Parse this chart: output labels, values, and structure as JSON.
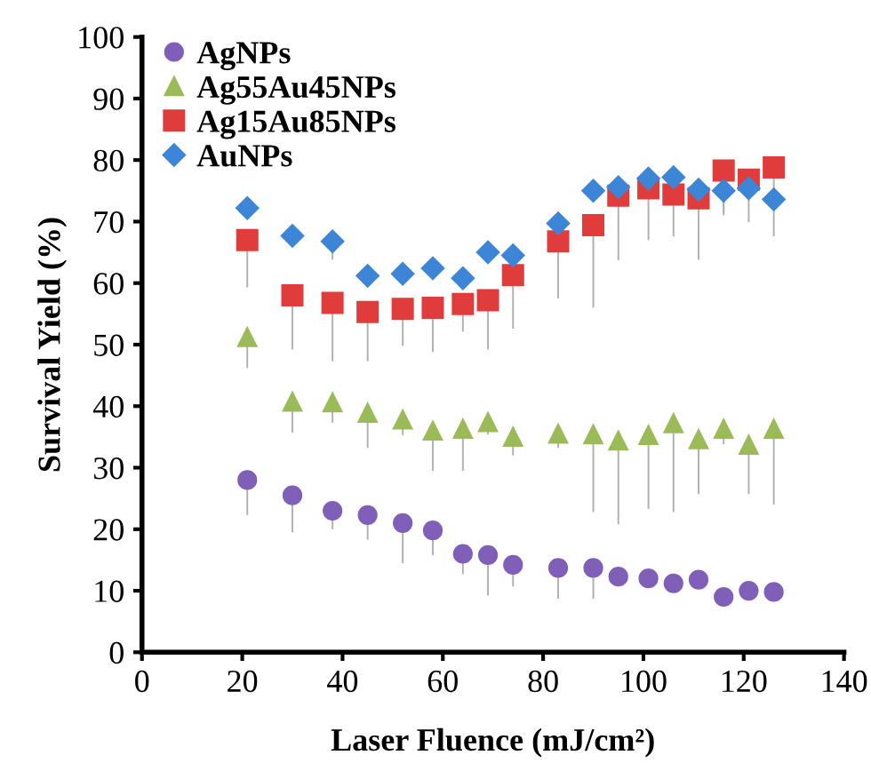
{
  "chart_data": {
    "type": "scatter",
    "xlabel": "Laser Fluence (mJ/cm²)",
    "ylabel": "Survival Yield (%)",
    "x": [
      21,
      30,
      38,
      45,
      52,
      58,
      64,
      69,
      74,
      83,
      90,
      95,
      101,
      106,
      111,
      116,
      121,
      126
    ],
    "xlim": [
      0,
      140
    ],
    "xticks": [
      0,
      20,
      40,
      60,
      80,
      100,
      120,
      140
    ],
    "ylim": [
      0,
      100
    ],
    "yticks": [
      0,
      10,
      20,
      30,
      40,
      50,
      60,
      70,
      80,
      90,
      100
    ],
    "grid": false,
    "legend": "top left",
    "series": [
      {
        "name": "AgNPs",
        "color": "#7f5fb8",
        "marker": "circle",
        "values": [
          28,
          25.5,
          23,
          22.3,
          21,
          19.8,
          16,
          15.8,
          14.2,
          13.7,
          13.7,
          12.3,
          12,
          11.2,
          11.8,
          9,
          10,
          9.8
        ],
        "errors": [
          [
            22.3,
            28
          ],
          [
            19.5,
            25.5
          ],
          [
            20,
            23
          ],
          [
            18.3,
            22.3
          ],
          [
            14.5,
            21
          ],
          [
            15.8,
            19.8
          ],
          [
            12.7,
            16
          ],
          [
            9.2,
            15.8
          ],
          [
            10.7,
            14.2
          ],
          [
            8.7,
            13.7
          ],
          [
            8.7,
            13.7
          ],
          null,
          null,
          null,
          null,
          null,
          null,
          null
        ]
      },
      {
        "name": "Ag55Au45NPs",
        "color": "#9bbb59",
        "marker": "triangle",
        "values": [
          51.2,
          40.7,
          40.6,
          38.9,
          37.8,
          36,
          36.3,
          37.4,
          35,
          35.5,
          35.4,
          34.4,
          35.3,
          37.2,
          34.6,
          36.3,
          33.7,
          36.3
        ],
        "errors": [
          [
            46.2,
            51.2
          ],
          [
            35.7,
            40.7
          ],
          [
            37.3,
            40.6
          ],
          [
            33.2,
            38.9
          ],
          [
            35.3,
            37.8
          ],
          [
            29.5,
            36
          ],
          [
            29.5,
            36.3
          ],
          [
            35.4,
            37.4
          ],
          [
            32,
            35
          ],
          [
            33.2,
            35.5
          ],
          [
            22.8,
            35.4
          ],
          [
            20.8,
            34.4
          ],
          [
            23.3,
            35.3
          ],
          [
            22.8,
            37.2
          ],
          [
            25.7,
            34.6
          ],
          [
            33.8,
            36.3
          ],
          [
            25.7,
            33.7
          ],
          [
            24,
            36.3
          ]
        ]
      },
      {
        "name": "Ag15Au85NPs",
        "color": "#e03c3c",
        "marker": "square",
        "values": [
          67,
          58,
          56.8,
          55.3,
          55.8,
          56,
          56.6,
          57.2,
          61.3,
          66.8,
          69.4,
          74.2,
          75.4,
          74.4,
          73.8,
          78.3,
          76.8,
          78.8
        ],
        "errors": [
          [
            59.3,
            67
          ],
          [
            49.2,
            58
          ],
          [
            47.3,
            56.8
          ],
          [
            47.3,
            55.3
          ],
          [
            49.8,
            55.8
          ],
          [
            48.8,
            56
          ],
          [
            52.1,
            56.6
          ],
          [
            49.2,
            57.2
          ],
          [
            52.6,
            61.3
          ],
          [
            57.5,
            66.8
          ],
          [
            56,
            69.4
          ],
          [
            63.7,
            74.2
          ],
          [
            67,
            75.4
          ],
          [
            67.6,
            74.4
          ],
          [
            63.8,
            73.8
          ],
          [
            71.4,
            78.3
          ],
          [
            69.9,
            76.8
          ],
          [
            67.6,
            78.8
          ]
        ]
      },
      {
        "name": "AuNPs",
        "color": "#3d85d6",
        "marker": "diamond",
        "values": [
          72.2,
          67.7,
          66.8,
          61.2,
          61.5,
          62.4,
          60.8,
          65,
          64.5,
          69.7,
          75,
          75.6,
          77,
          77.2,
          75.2,
          75,
          75.4,
          73.6
        ],
        "errors": [
          null,
          null,
          [
            63.8,
            66.8
          ],
          null,
          null,
          null,
          null,
          null,
          null,
          null,
          null,
          null,
          null,
          null,
          null,
          [
            71,
            75
          ],
          null,
          null
        ]
      }
    ]
  }
}
